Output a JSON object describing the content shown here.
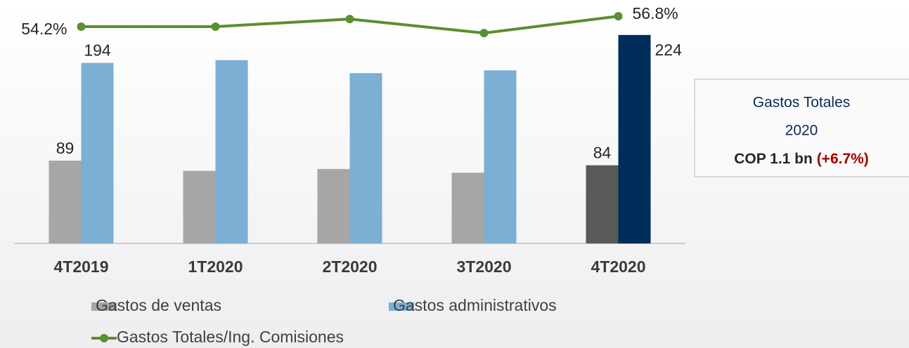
{
  "chart_data": {
    "type": "bar_line",
    "categories": [
      "4T2019",
      "1T2020",
      "2T2020",
      "3T2020",
      "4T2020"
    ],
    "series": [
      {
        "name": "Gastos de ventas",
        "color": "#a6a6a6",
        "colors": [
          "#a6a6a6",
          "#a6a6a6",
          "#a6a6a6",
          "#a6a6a6",
          "#595959"
        ],
        "values": [
          89,
          78,
          80,
          76,
          84
        ],
        "value_labels": [
          "89",
          null,
          null,
          null,
          "84"
        ]
      },
      {
        "name": "Gastos administrativos",
        "color": "#7bafd4",
        "colors": [
          "#7bafd4",
          "#7bafd4",
          "#7bafd4",
          "#7bafd4",
          "#002d5a"
        ],
        "values": [
          194,
          197,
          183,
          186,
          224
        ],
        "value_labels": [
          "194",
          null,
          null,
          null,
          "224"
        ]
      },
      {
        "name": "Gastos Totales/Ing. Comisiones",
        "color": "#5b8f2f",
        "axis": "y2",
        "values": [
          54.2,
          54.2,
          56.1,
          52.6,
          56.8
        ],
        "value_labels": [
          "54.2%",
          null,
          null,
          null,
          "56.8%"
        ]
      }
    ],
    "ylim": [
      0,
      245
    ],
    "y2lim": [
      0,
      57
    ],
    "annotation": {
      "line1": "Gastos Totales",
      "line2": "2020",
      "amount": "COP 1.1 bn",
      "change": "(+6.7%)"
    }
  }
}
